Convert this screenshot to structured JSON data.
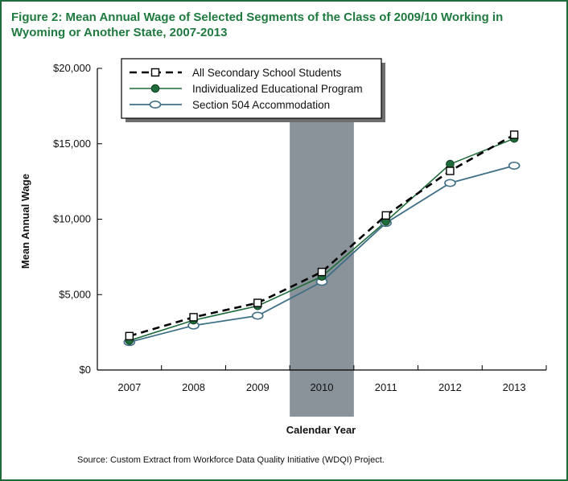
{
  "title": "Figure 2: Mean Annual Wage of Selected Segments of the Class of 2009/10 Working in Wyoming or Another State, 2007-2013",
  "source": "Source: Custom Extract from Workforce Data Quality Initiative (WDQI) Project.",
  "colors": {
    "title": "#1f7a3f",
    "frame": "#1f6b3a",
    "highlight_band": "#8a929a",
    "series_all": "#000000",
    "series_iep": "#1f6b3a",
    "series_504": "#3f6f86"
  },
  "chart_data": {
    "type": "line",
    "xlabel": "Calendar Year",
    "ylabel": "Mean Annual Wage",
    "categories": [
      "2007",
      "2008",
      "2009",
      "2010",
      "2011",
      "2012",
      "2013"
    ],
    "ylim": [
      0,
      20000
    ],
    "yticks": [
      0,
      5000,
      10000,
      15000,
      20000
    ],
    "ytick_labels": [
      "$0",
      "$5,000",
      "$10,000",
      "$15,000",
      "$20,000"
    ],
    "highlight_category": "2010",
    "legend_position": "top-left",
    "grid": false,
    "series": [
      {
        "name": "All Secondary School Students",
        "values": [
          2250,
          3500,
          4450,
          6500,
          10250,
          13200,
          15600
        ]
      },
      {
        "name": "Individualized Educational Program",
        "values": [
          1950,
          3300,
          4250,
          6200,
          9850,
          13650,
          15350
        ]
      },
      {
        "name": "Section 504 Accommodation",
        "values": [
          1850,
          2950,
          3600,
          5850,
          9750,
          12400,
          13550
        ]
      }
    ]
  }
}
